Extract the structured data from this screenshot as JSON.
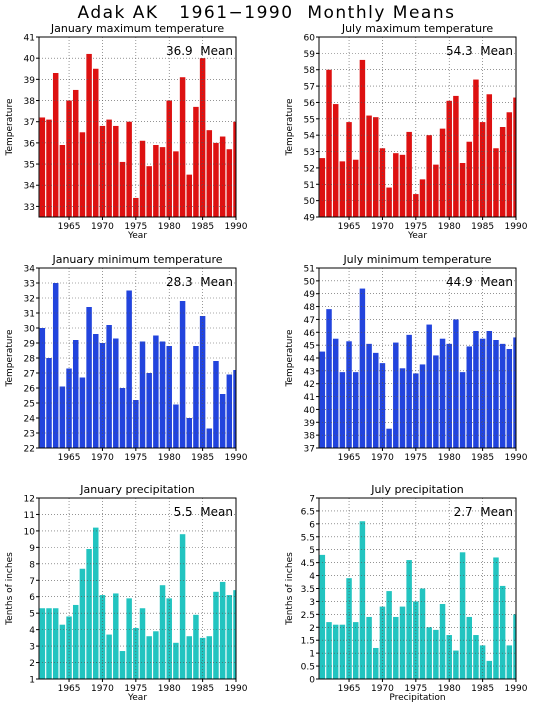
{
  "page": {
    "title": "Adak AK   1961−1990  Monthly Means"
  },
  "chart_data": [
    {
      "type": "bar",
      "title": "January maximum temperature",
      "ylabel": "Temperature",
      "xlabel": "Year",
      "mean_text": "36.9  Mean",
      "color": "#dd1111",
      "ylim": [
        32.5,
        41
      ],
      "yticks": [
        33,
        34,
        35,
        36,
        37,
        38,
        39,
        40,
        41
      ],
      "xlim": [
        1960.5,
        1990
      ],
      "xticks": [
        1965,
        1970,
        1975,
        1980,
        1985,
        1990
      ],
      "grid": true,
      "x": [
        1961,
        1962,
        1963,
        1964,
        1965,
        1966,
        1967,
        1968,
        1969,
        1970,
        1971,
        1972,
        1973,
        1974,
        1975,
        1976,
        1977,
        1978,
        1979,
        1980,
        1981,
        1982,
        1983,
        1984,
        1985,
        1986,
        1987,
        1988,
        1989,
        1990
      ],
      "values": [
        37.2,
        37.1,
        39.3,
        35.9,
        38.0,
        38.5,
        36.5,
        40.2,
        39.5,
        36.8,
        37.1,
        36.8,
        35.1,
        37.0,
        33.4,
        36.1,
        34.9,
        35.9,
        35.8,
        38.0,
        35.6,
        39.1,
        34.5,
        37.7,
        40.0,
        36.6,
        36.0,
        36.3,
        35.7,
        37.0
      ]
    },
    {
      "type": "bar",
      "title": "July maximum temperature",
      "ylabel": "Temperature",
      "xlabel": "Year",
      "mean_text": "54.3  Mean",
      "color": "#dd1111",
      "ylim": [
        49,
        60
      ],
      "yticks": [
        49,
        50,
        51,
        52,
        53,
        54,
        55,
        56,
        57,
        58,
        59,
        60
      ],
      "xlim": [
        1960.5,
        1990
      ],
      "xticks": [
        1965,
        1970,
        1975,
        1980,
        1985,
        1990
      ],
      "grid": true,
      "x": [
        1961,
        1962,
        1963,
        1964,
        1965,
        1966,
        1967,
        1968,
        1969,
        1970,
        1971,
        1972,
        1973,
        1974,
        1975,
        1976,
        1977,
        1978,
        1979,
        1980,
        1981,
        1982,
        1983,
        1984,
        1985,
        1986,
        1987,
        1988,
        1989,
        1990
      ],
      "values": [
        52.6,
        58.0,
        55.9,
        52.4,
        54.8,
        52.5,
        58.6,
        55.2,
        55.1,
        53.2,
        50.8,
        52.9,
        52.8,
        54.2,
        50.4,
        51.3,
        54.0,
        52.2,
        54.4,
        56.1,
        56.4,
        52.3,
        53.6,
        57.4,
        54.8,
        56.5,
        53.2,
        54.5,
        55.4,
        56.3
      ]
    },
    {
      "type": "bar",
      "title": "January minimum temperature",
      "ylabel": "Temperature",
      "xlabel": "",
      "mean_text": "28.3  Mean",
      "color": "#2244dd",
      "ylim": [
        22,
        34
      ],
      "yticks": [
        22,
        23,
        24,
        25,
        26,
        27,
        28,
        29,
        30,
        31,
        32,
        33,
        34
      ],
      "xlim": [
        1960.5,
        1990
      ],
      "xticks": [
        1965,
        1970,
        1975,
        1980,
        1985,
        1990
      ],
      "grid": true,
      "x": [
        1961,
        1962,
        1963,
        1964,
        1965,
        1966,
        1967,
        1968,
        1969,
        1970,
        1971,
        1972,
        1973,
        1974,
        1975,
        1976,
        1977,
        1978,
        1979,
        1980,
        1981,
        1982,
        1983,
        1984,
        1985,
        1986,
        1987,
        1988,
        1989,
        1990
      ],
      "values": [
        30.0,
        28.0,
        33.0,
        26.1,
        27.3,
        29.2,
        26.7,
        31.4,
        29.6,
        29.0,
        30.2,
        29.3,
        26.0,
        32.5,
        25.2,
        29.1,
        27.0,
        29.5,
        29.1,
        28.8,
        24.9,
        31.8,
        24.0,
        28.8,
        30.8,
        23.3,
        27.8,
        25.6,
        26.9,
        27.2
      ]
    },
    {
      "type": "bar",
      "title": "July minimum temperature",
      "ylabel": "Temperature",
      "xlabel": "",
      "mean_text": "44.9  Mean",
      "color": "#2244dd",
      "ylim": [
        37,
        51
      ],
      "yticks": [
        37,
        38,
        39,
        40,
        41,
        42,
        43,
        44,
        45,
        46,
        47,
        48,
        49,
        50,
        51
      ],
      "xlim": [
        1960.5,
        1990
      ],
      "xticks": [
        1965,
        1970,
        1975,
        1980,
        1985,
        1990
      ],
      "grid": true,
      "x": [
        1961,
        1962,
        1963,
        1964,
        1965,
        1966,
        1967,
        1968,
        1969,
        1970,
        1971,
        1972,
        1973,
        1974,
        1975,
        1976,
        1977,
        1978,
        1979,
        1980,
        1981,
        1982,
        1983,
        1984,
        1985,
        1986,
        1987,
        1988,
        1989,
        1990
      ],
      "values": [
        44.5,
        47.8,
        45.5,
        42.9,
        45.3,
        42.9,
        49.4,
        45.1,
        44.4,
        43.6,
        38.5,
        45.2,
        43.2,
        45.8,
        42.8,
        43.5,
        46.6,
        44.2,
        45.5,
        45.1,
        47.0,
        42.9,
        44.9,
        46.1,
        45.5,
        46.1,
        45.4,
        45.1,
        44.7,
        45.6
      ]
    },
    {
      "type": "bar",
      "title": "January precipitation",
      "ylabel": "Tenths of inches",
      "xlabel": "Year",
      "mean_text": "5.5  Mean",
      "color": "#22c4c0",
      "ylim": [
        1,
        12
      ],
      "yticks": [
        1,
        2,
        3,
        4,
        5,
        6,
        7,
        8,
        9,
        10,
        11,
        12
      ],
      "xlim": [
        1960.5,
        1990
      ],
      "xticks": [
        1965,
        1970,
        1975,
        1980,
        1985,
        1990
      ],
      "grid": true,
      "x": [
        1961,
        1962,
        1963,
        1964,
        1965,
        1966,
        1967,
        1968,
        1969,
        1970,
        1971,
        1972,
        1973,
        1974,
        1975,
        1976,
        1977,
        1978,
        1979,
        1980,
        1981,
        1982,
        1983,
        1984,
        1985,
        1986,
        1987,
        1988,
        1989,
        1990
      ],
      "values": [
        5.3,
        5.3,
        5.3,
        4.3,
        4.8,
        5.5,
        7.7,
        8.9,
        10.2,
        6.1,
        3.7,
        6.2,
        2.7,
        5.9,
        4.1,
        5.3,
        3.6,
        3.9,
        6.7,
        5.9,
        3.2,
        9.8,
        3.6,
        4.9,
        3.5,
        3.6,
        6.3,
        6.9,
        6.1,
        6.4
      ]
    },
    {
      "type": "bar",
      "title": "July precipitation",
      "ylabel": "Tenths of inches",
      "xlabel": "Precipitation",
      "mean_text": "2.7  Mean",
      "color": "#22c4c0",
      "ylim": [
        0,
        7
      ],
      "yticks": [
        0,
        0.5,
        1,
        1.5,
        2,
        2.5,
        3,
        3.5,
        4,
        4.5,
        5,
        5.5,
        6,
        6.5,
        7
      ],
      "xlim": [
        1960.5,
        1990
      ],
      "xticks": [
        1965,
        1970,
        1975,
        1980,
        1985,
        1990
      ],
      "grid": true,
      "x": [
        1961,
        1962,
        1963,
        1964,
        1965,
        1966,
        1967,
        1968,
        1969,
        1970,
        1971,
        1972,
        1973,
        1974,
        1975,
        1976,
        1977,
        1978,
        1979,
        1980,
        1981,
        1982,
        1983,
        1984,
        1985,
        1986,
        1987,
        1988,
        1989,
        1990
      ],
      "values": [
        4.8,
        2.2,
        2.1,
        2.1,
        3.9,
        2.2,
        6.1,
        2.4,
        1.2,
        2.8,
        3.4,
        2.4,
        2.8,
        4.6,
        3.0,
        3.5,
        2.0,
        1.9,
        2.9,
        1.7,
        1.1,
        4.9,
        2.4,
        1.7,
        1.3,
        0.7,
        4.7,
        3.6,
        1.3,
        2.5
      ]
    }
  ]
}
